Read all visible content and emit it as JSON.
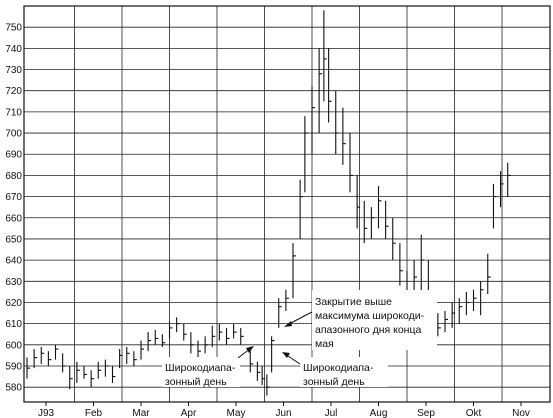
{
  "chart_data": {
    "type": "bar",
    "subtype": "ohlc-price-bars",
    "title": "",
    "xlabel": "",
    "ylabel": "",
    "ylim": [
      573,
      760
    ],
    "y_ticks": [
      580,
      590,
      600,
      610,
      620,
      630,
      640,
      650,
      660,
      670,
      680,
      690,
      700,
      710,
      720,
      730,
      740,
      750
    ],
    "x_ticks": [
      "J93",
      "Feb",
      "Mar",
      "Apr",
      "May",
      "Jun",
      "Jul",
      "Aug",
      "Sep",
      "Okt",
      "Nov"
    ],
    "grid": true,
    "series": [
      {
        "name": "",
        "points": [
          {
            "x": 0,
            "low": 584,
            "high": 594,
            "close": 589
          },
          {
            "x": 0.15,
            "low": 589,
            "high": 598,
            "close": 594
          },
          {
            "x": 0.3,
            "low": 591,
            "high": 599,
            "close": 596
          },
          {
            "x": 0.45,
            "low": 590,
            "high": 597,
            "close": 593
          },
          {
            "x": 0.6,
            "low": 593,
            "high": 600,
            "close": 598
          },
          {
            "x": 0.75,
            "low": 587,
            "high": 596,
            "close": 590
          },
          {
            "x": 0.9,
            "low": 579,
            "high": 590,
            "close": 584
          },
          {
            "x": 1.05,
            "low": 582,
            "high": 592,
            "close": 588
          },
          {
            "x": 1.2,
            "low": 584,
            "high": 590,
            "close": 586
          },
          {
            "x": 1.35,
            "low": 580,
            "high": 588,
            "close": 584
          },
          {
            "x": 1.5,
            "low": 584,
            "high": 592,
            "close": 588
          },
          {
            "x": 1.65,
            "low": 585,
            "high": 593,
            "close": 590
          },
          {
            "x": 1.8,
            "low": 582,
            "high": 590,
            "close": 585
          },
          {
            "x": 1.95,
            "low": 589,
            "high": 598,
            "close": 595
          },
          {
            "x": 2.1,
            "low": 591,
            "high": 599,
            "close": 596
          },
          {
            "x": 2.25,
            "low": 590,
            "high": 597,
            "close": 593
          },
          {
            "x": 2.4,
            "low": 593,
            "high": 602,
            "close": 598
          },
          {
            "x": 2.55,
            "low": 597,
            "high": 606,
            "close": 602
          },
          {
            "x": 2.7,
            "low": 600,
            "high": 607,
            "close": 603
          },
          {
            "x": 2.85,
            "low": 599,
            "high": 605,
            "close": 601
          },
          {
            "x": 3.0,
            "low": 603,
            "high": 611,
            "close": 608
          },
          {
            "x": 3.15,
            "low": 606,
            "high": 613,
            "close": 610
          },
          {
            "x": 3.3,
            "low": 602,
            "high": 610,
            "close": 605
          },
          {
            "x": 3.45,
            "low": 596,
            "high": 606,
            "close": 600
          },
          {
            "x": 3.6,
            "low": 593,
            "high": 602,
            "close": 597
          },
          {
            "x": 3.75,
            "low": 596,
            "high": 604,
            "close": 600
          },
          {
            "x": 3.9,
            "low": 599,
            "high": 609,
            "close": 604
          },
          {
            "x": 4.05,
            "low": 602,
            "high": 610,
            "close": 606
          },
          {
            "x": 4.2,
            "low": 600,
            "high": 608,
            "close": 603
          },
          {
            "x": 4.35,
            "low": 603,
            "high": 610,
            "close": 606
          },
          {
            "x": 4.5,
            "low": 600,
            "high": 608,
            "close": 604
          },
          {
            "x": 4.7,
            "low": 587,
            "high": 598,
            "close": 591
          },
          {
            "x": 4.85,
            "low": 583,
            "high": 592,
            "close": 587
          },
          {
            "x": 4.95,
            "low": 581,
            "high": 590,
            "close": 584
          },
          {
            "x": 5.05,
            "low": 576,
            "high": 586,
            "close": 580
          },
          {
            "x": 5.15,
            "low": 587,
            "high": 604,
            "close": 602
          },
          {
            "x": 5.3,
            "low": 608,
            "high": 622,
            "close": 618
          },
          {
            "x": 5.45,
            "low": 616,
            "high": 626,
            "close": 622
          },
          {
            "x": 5.6,
            "low": 622,
            "high": 648,
            "close": 642
          },
          {
            "x": 5.75,
            "low": 650,
            "high": 678,
            "close": 670
          },
          {
            "x": 5.85,
            "low": 672,
            "high": 708,
            "close": 700
          },
          {
            "x": 6.0,
            "low": 690,
            "high": 722,
            "close": 712
          },
          {
            "x": 6.15,
            "low": 700,
            "high": 740,
            "close": 728
          },
          {
            "x": 6.25,
            "low": 715,
            "high": 758,
            "close": 735
          },
          {
            "x": 6.35,
            "low": 705,
            "high": 740,
            "close": 715
          },
          {
            "x": 6.5,
            "low": 690,
            "high": 720,
            "close": 700
          },
          {
            "x": 6.65,
            "low": 685,
            "high": 712,
            "close": 695
          },
          {
            "x": 6.8,
            "low": 672,
            "high": 700,
            "close": 680
          },
          {
            "x": 6.95,
            "low": 655,
            "high": 680,
            "close": 665
          },
          {
            "x": 7.1,
            "low": 648,
            "high": 668,
            "close": 655
          },
          {
            "x": 7.25,
            "low": 650,
            "high": 665,
            "close": 660
          },
          {
            "x": 7.4,
            "low": 655,
            "high": 675,
            "close": 668
          },
          {
            "x": 7.55,
            "low": 650,
            "high": 668,
            "close": 656
          },
          {
            "x": 7.7,
            "low": 640,
            "high": 660,
            "close": 648
          },
          {
            "x": 7.85,
            "low": 628,
            "high": 648,
            "close": 635
          },
          {
            "x": 8.0,
            "low": 615,
            "high": 635,
            "close": 622
          },
          {
            "x": 8.15,
            "low": 618,
            "high": 640,
            "close": 632
          },
          {
            "x": 8.3,
            "low": 625,
            "high": 652,
            "close": 640
          },
          {
            "x": 8.45,
            "low": 615,
            "high": 640,
            "close": 622
          },
          {
            "x": 8.65,
            "low": 604,
            "high": 615,
            "close": 608
          },
          {
            "x": 8.8,
            "low": 606,
            "high": 616,
            "close": 612
          },
          {
            "x": 8.95,
            "low": 608,
            "high": 620,
            "close": 615
          },
          {
            "x": 9.1,
            "low": 610,
            "high": 622,
            "close": 618
          },
          {
            "x": 9.25,
            "low": 614,
            "high": 625,
            "close": 620
          },
          {
            "x": 9.4,
            "low": 616,
            "high": 626,
            "close": 622
          },
          {
            "x": 9.55,
            "low": 614,
            "high": 630,
            "close": 626
          },
          {
            "x": 9.7,
            "low": 624,
            "high": 643,
            "close": 632
          },
          {
            "x": 9.82,
            "low": 655,
            "high": 676,
            "close": 670
          },
          {
            "x": 9.97,
            "low": 665,
            "high": 682,
            "close": 676
          },
          {
            "x": 10.12,
            "low": 670,
            "high": 686,
            "close": 680
          }
        ]
      }
    ],
    "annotations": [
      {
        "lines": [
          "Закрытие выше",
          "максимума широкоди-",
          "апазонного дня конца",
          "мая"
        ]
      },
      {
        "lines": [
          "Широкодиапа-",
          "зонный день"
        ]
      },
      {
        "lines": [
          "Широкодиапа-",
          "зонный день"
        ]
      }
    ]
  }
}
